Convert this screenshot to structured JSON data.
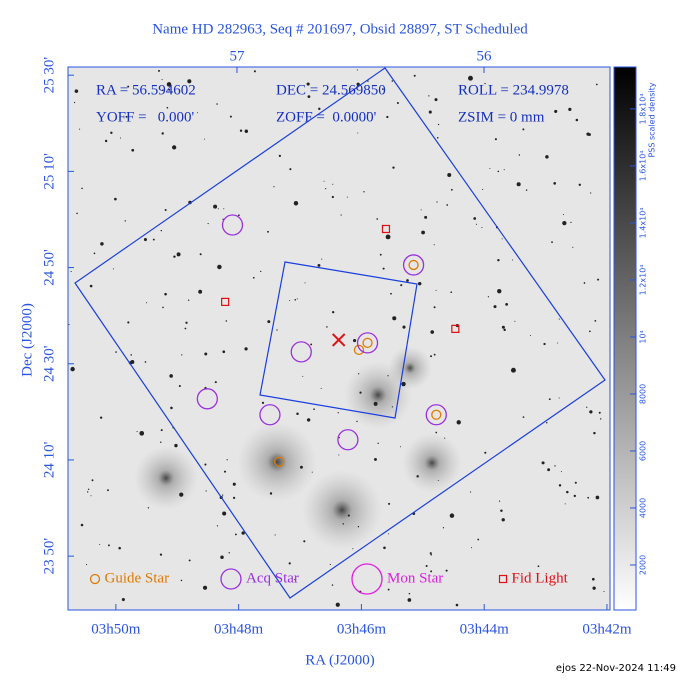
{
  "chart_data": {
    "type": "scatter",
    "title": "Name HD 282963, Seq # 201697, Obsid 28897, ST Scheduled",
    "annotations": [
      "RA = 56.594602",
      "DEC = 24.569850",
      "ROLL = 234.9978",
      "YOFF =   0.000'",
      "ZOFF =  0.0000'",
      "ZSIM = 0 mm"
    ],
    "xlabel": "RA (J2000)",
    "ylabel": "Dec (J2000)",
    "xlim": [
      50.78,
      41.95
    ],
    "xticks": [
      {
        "value": 50,
        "label": "03h50m"
      },
      {
        "value": 48,
        "label": "03h48m"
      },
      {
        "value": 46,
        "label": "03h46m"
      },
      {
        "value": 44,
        "label": "03h44m"
      },
      {
        "value": 42,
        "label": "03h42m"
      }
    ],
    "x2lim": [
      57.684,
      55.49
    ],
    "x2ticks": [
      57,
      56
    ],
    "ylim": [
      1418.8,
      1531.7
    ],
    "yticks": [
      {
        "value": 1530,
        "label": "25 30'"
      },
      {
        "value": 1510,
        "label": "25 10'"
      },
      {
        "value": 1490,
        "label": "24 50'"
      },
      {
        "value": 1470,
        "label": "24 30'"
      },
      {
        "value": 1450,
        "label": "24 10'"
      },
      {
        "value": 1430,
        "label": "23 50'"
      }
    ],
    "colorbar": {
      "label": "PSS scaled density",
      "lim": [
        420,
        19470
      ],
      "ticks": [
        2000,
        4000,
        6000,
        8000,
        {
          "value": 10000,
          "label": "10⁴"
        },
        {
          "value": 12000,
          "label": "1.2x10⁴"
        },
        {
          "value": 14000,
          "label": "1.4x10⁴"
        },
        {
          "value": 16000,
          "label": "1.6x10⁴"
        },
        {
          "value": 18000,
          "label": "1.8x10⁴"
        }
      ]
    },
    "series": [
      {
        "name": "Guide Star",
        "color": "#e07b00",
        "marker": "circle",
        "x": [
          45.15,
          45.9,
          46.04,
          44.78,
          47.34
        ],
        "values": [
          1490.54,
          1474.34,
          1472.89,
          1459.39,
          1449.63
        ]
      },
      {
        "name": "Acq Star",
        "color": "#9a30e0",
        "marker": "circle",
        "x": [
          48.1,
          45.15,
          45.9,
          46.98,
          48.51,
          47.49,
          44.78,
          46.22
        ],
        "values": [
          1498.85,
          1490.54,
          1474.34,
          1472.47,
          1462.71,
          1459.39,
          1459.39,
          1454.2
        ]
      },
      {
        "name": "Mon Star",
        "color": "#e020e0",
        "marker": "circle",
        "x": [],
        "values": []
      },
      {
        "name": "Fid Light",
        "color": "#e01010",
        "marker": "square",
        "x": [
          45.6,
          48.22,
          44.47
        ],
        "values": [
          1498.02,
          1482.86,
          1477.25
        ]
      }
    ],
    "target": {
      "color": "#e01010",
      "x": 46.37,
      "y": 1474.96
    },
    "footer": "ejos 22-Nov-2024 11:49"
  }
}
